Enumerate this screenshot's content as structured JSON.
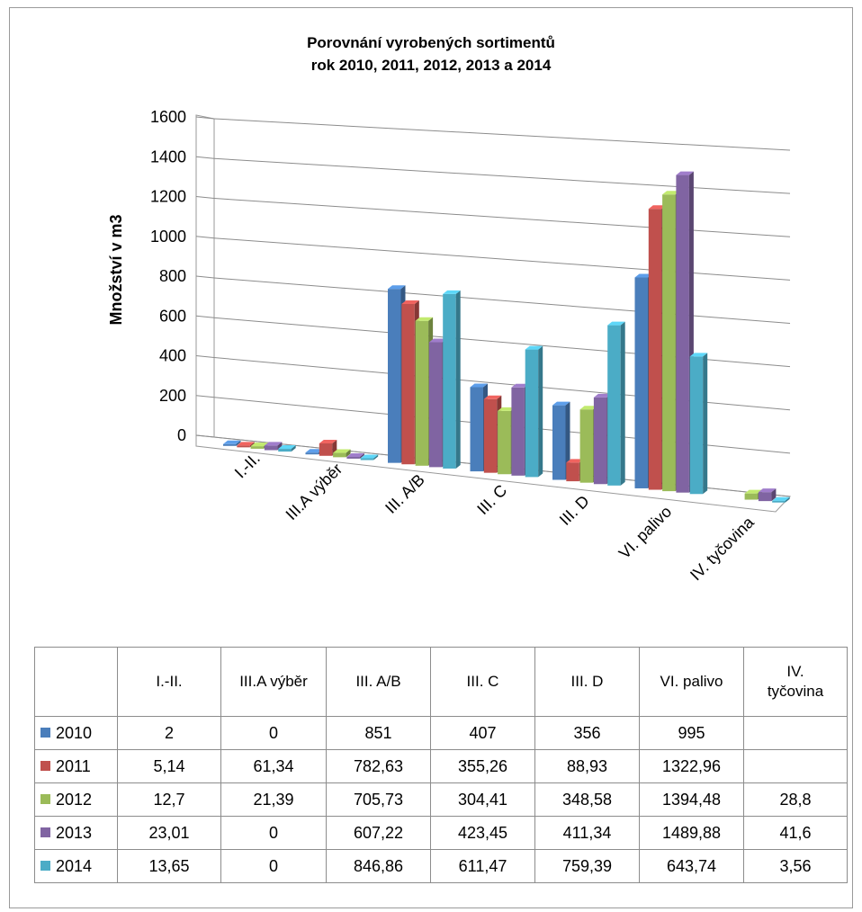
{
  "chart_data": {
    "type": "bar",
    "title": "Porovnání  vyrobených sortimentů",
    "subtitle": "rok 2010, 2011, 2012, 2013 a 2014",
    "ylabel": "Množství v m3",
    "xlabel": "",
    "ylim": [
      0,
      1600
    ],
    "yticks": [
      "0",
      "200",
      "400",
      "600",
      "800",
      "1000",
      "1200",
      "1400",
      "1600"
    ],
    "grid": true,
    "categories": [
      "I.-II.",
      "III.A výběr",
      "III. A/B",
      "III. C",
      "III. D",
      "VI. palivo",
      "IV. tyčovina"
    ],
    "series": [
      {
        "name": "2010",
        "color": "#4a7ebb",
        "values": [
          2,
          0,
          851,
          407,
          356,
          995,
          null
        ],
        "labels": [
          "2",
          "0",
          "851",
          "407",
          "356",
          "995",
          ""
        ]
      },
      {
        "name": "2011",
        "color": "#c0504d",
        "values": [
          5.14,
          61.34,
          782.63,
          355.26,
          88.93,
          1322.96,
          null
        ],
        "labels": [
          "5,14",
          "61,34",
          "782,63",
          "355,26",
          "88,93",
          "1322,96",
          ""
        ]
      },
      {
        "name": "2012",
        "color": "#9bbb59",
        "values": [
          12.7,
          21.39,
          705.73,
          304.41,
          348.58,
          1394.48,
          28.8
        ],
        "labels": [
          "12,7",
          "21,39",
          "705,73",
          "304,41",
          "348,58",
          "1394,48",
          "28,8"
        ]
      },
      {
        "name": "2013",
        "color": "#8064a2",
        "values": [
          23.01,
          0,
          607.22,
          423.45,
          411.34,
          1489.88,
          41.6
        ],
        "labels": [
          "23,01",
          "0",
          "607,22",
          "423,45",
          "411,34",
          "1489,88",
          "41,6"
        ]
      },
      {
        "name": "2014",
        "color": "#4bacc6",
        "values": [
          13.65,
          0,
          846.86,
          611.47,
          759.39,
          643.74,
          3.56
        ],
        "labels": [
          "13,65",
          "0",
          "846,86",
          "611,47",
          "759,39",
          "643,74",
          "3,56"
        ]
      }
    ],
    "table": {
      "headers": [
        "I.-II.",
        "III.A výběr",
        "III. A/B",
        "III. C",
        "III. D",
        "VI. palivo",
        "IV. tyčovina"
      ]
    }
  }
}
